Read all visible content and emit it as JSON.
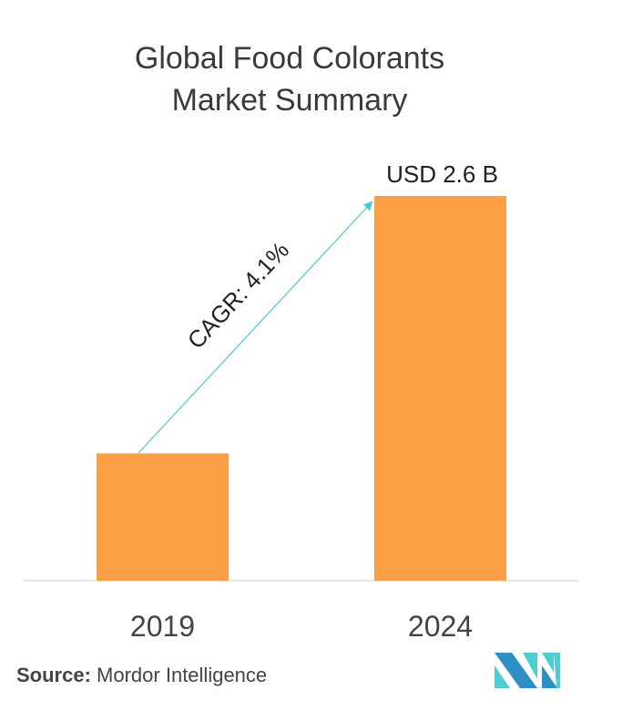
{
  "title_line1": "Global Food Colorants",
  "title_line2": "Market Summary",
  "source_label": "Source:",
  "source_value": "Mordor Intelligence",
  "logo_text": "Mordor Intelligence",
  "colors": {
    "bar": "#FB9F47",
    "arrow": "#4DC8CF",
    "axis": "#CCCCCC",
    "logo_dark": "#2E8FC4",
    "logo_light": "#4ECED3"
  },
  "chart_data": {
    "type": "bar",
    "title": "Global Food Colorants Market Summary",
    "categories": [
      "2019",
      "2024"
    ],
    "values": [
      0.86,
      2.6
    ],
    "unit": "USD Billion",
    "data_labels": [
      "",
      "USD 2.6 B"
    ],
    "annotation": "CAGR: 4.1%",
    "xlabel": "",
    "ylabel": "",
    "ylim": [
      0,
      2.6
    ],
    "grid": false
  }
}
